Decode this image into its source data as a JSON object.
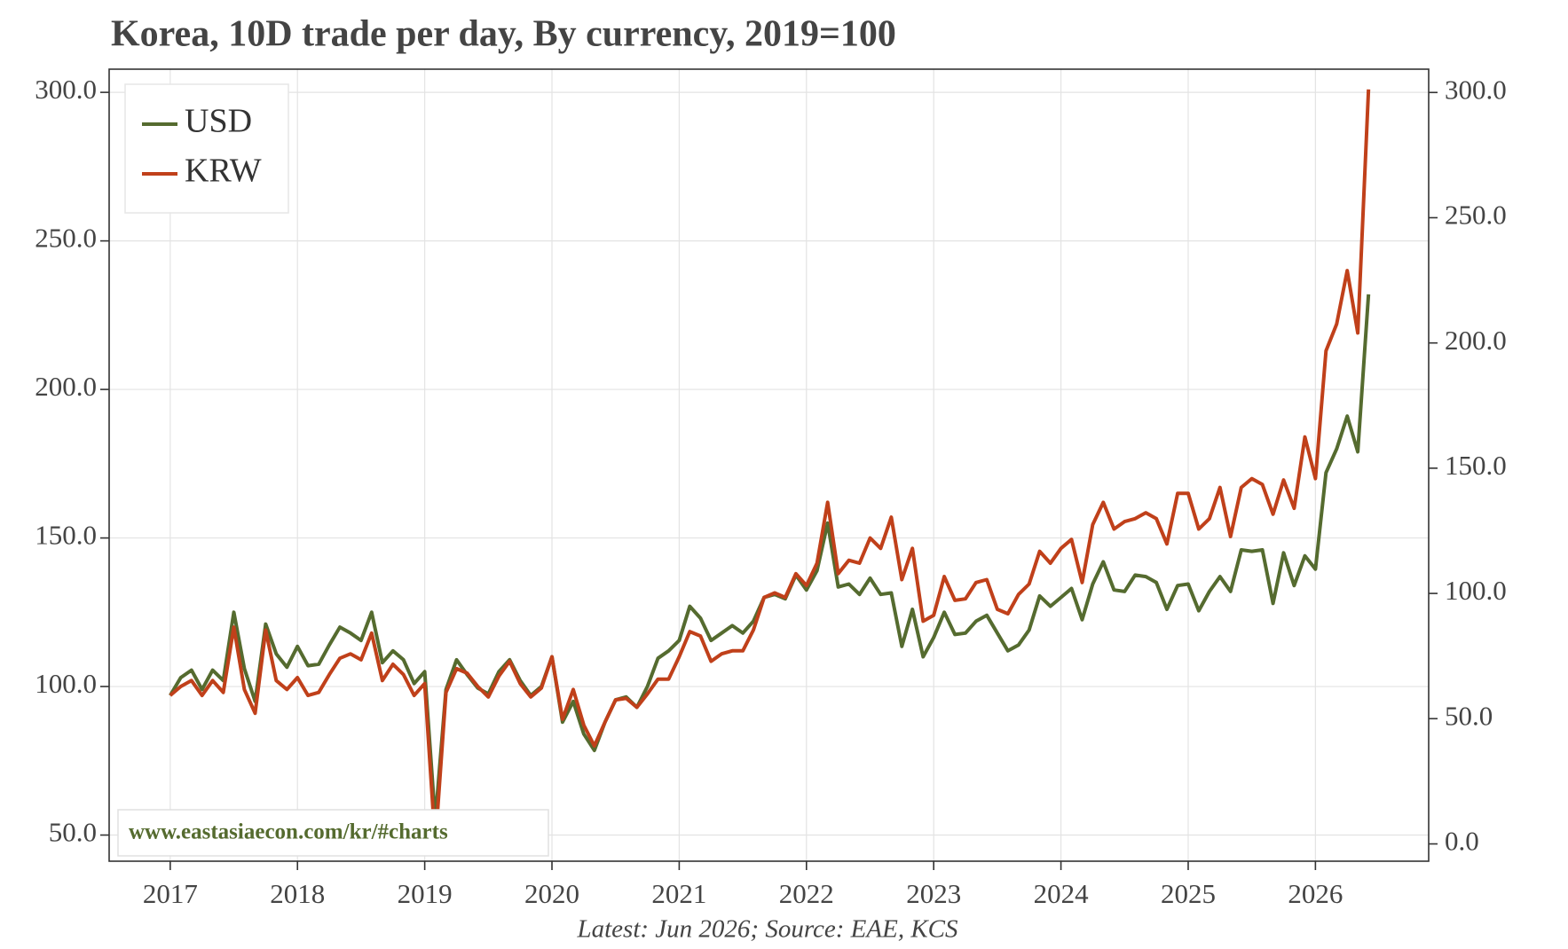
{
  "chart_data": {
    "type": "line",
    "title": "Korea, 10D trade per day, By currency, 2019=100",
    "source": "Latest: Jun 2026; Source: EAE, KCS",
    "watermark": "www.eastasiaecon.com/kr/#charts",
    "legend": "upper left",
    "grid": true,
    "x": [
      2017,
      2017.083,
      2017.167,
      2017.25,
      2017.333,
      2017.417,
      2017.5,
      2017.583,
      2017.667,
      2017.75,
      2017.833,
      2017.917,
      2018,
      2018.083,
      2018.167,
      2018.25,
      2018.333,
      2018.417,
      2018.5,
      2018.583,
      2018.667,
      2018.75,
      2018.833,
      2018.917,
      2019,
      2019.083,
      2019.167,
      2019.25,
      2019.333,
      2019.417,
      2019.5,
      2019.583,
      2019.667,
      2019.75,
      2019.833,
      2019.917,
      2020,
      2020.083,
      2020.167,
      2020.25,
      2020.333,
      2020.417,
      2020.5,
      2020.583,
      2020.667,
      2020.75,
      2020.833,
      2020.917,
      2021,
      2021.083,
      2021.167,
      2021.25,
      2021.333,
      2021.417,
      2021.5,
      2021.583,
      2021.667,
      2021.75,
      2021.833,
      2021.917,
      2022,
      2022.083,
      2022.167,
      2022.25,
      2022.333,
      2022.417,
      2022.5,
      2022.583,
      2022.667,
      2022.75,
      2022.833,
      2022.917,
      2023,
      2023.083,
      2023.167,
      2023.25,
      2023.333,
      2023.417,
      2023.5,
      2023.583,
      2023.667,
      2023.75,
      2023.833,
      2023.917,
      2024,
      2024.083,
      2024.167,
      2024.25,
      2024.333,
      2024.417,
      2024.5,
      2024.583,
      2024.667,
      2024.75,
      2024.833,
      2024.917,
      2025,
      2025.083,
      2025.167,
      2025.25,
      2025.333,
      2025.417,
      2025.5,
      2025.583,
      2025.667,
      2025.75,
      2025.833,
      2025.917,
      2026,
      2026.083,
      2026.167,
      2026.25,
      2026.333,
      2026.417
    ],
    "series": [
      {
        "name": "USD",
        "color": "#556b2f",
        "values": [
          97,
          103,
          105.5,
          99,
          105.5,
          102,
          125,
          106,
          95,
          121,
          111,
          106.5,
          113.5,
          107,
          107.5,
          114,
          120,
          118,
          115.5,
          125,
          108,
          112,
          109,
          101,
          105,
          55,
          99,
          109,
          104,
          99.5,
          97.5,
          105,
          109,
          102,
          97,
          100,
          110,
          88,
          95,
          84,
          78.5,
          88,
          95.5,
          96.5,
          93,
          100,
          109.5,
          112,
          115.5,
          127,
          123,
          115.5,
          118,
          120.5,
          118,
          122,
          130,
          131,
          129.5,
          137.5,
          132.5,
          139,
          155,
          133.5,
          134.5,
          131,
          136.5,
          131,
          131.5,
          113.5,
          126,
          110,
          116.5,
          125,
          117.5,
          118,
          122,
          124,
          118,
          112,
          114,
          119,
          130.5,
          127,
          130,
          133,
          122.5,
          134.5,
          142,
          132.5,
          132,
          137.5,
          137,
          135,
          126,
          134,
          134.5,
          125.5,
          132,
          137,
          132,
          146,
          145.5,
          146,
          128,
          145,
          134,
          144,
          139.5,
          172,
          180,
          191,
          179,
          232
        ]
      },
      {
        "name": "KRW",
        "color": "#c0401a",
        "values": [
          97,
          100,
          102,
          97,
          102,
          98,
          120,
          99,
          91,
          119,
          102,
          99,
          103,
          97,
          98,
          104,
          109.5,
          111,
          109,
          118,
          102,
          107.5,
          104,
          97,
          101,
          47,
          98,
          106,
          104.5,
          100,
          96.5,
          103.5,
          108.5,
          101,
          96.5,
          99.5,
          110,
          89,
          99,
          87,
          80,
          88,
          95.5,
          96,
          93,
          97.5,
          102.5,
          102.5,
          110,
          118.5,
          117,
          108.5,
          111,
          112,
          112,
          119,
          130,
          131.5,
          130,
          138,
          134,
          141.5,
          162,
          138,
          142.5,
          141.5,
          150,
          146.5,
          157,
          136,
          146.5,
          122,
          124,
          137,
          129,
          129.5,
          135,
          136,
          126,
          124.5,
          131,
          134.5,
          145.5,
          141.5,
          146.5,
          149.5,
          135,
          154.5,
          162,
          153,
          155.5,
          156.5,
          158.5,
          156.5,
          148,
          165,
          165,
          153,
          156.5,
          167,
          150.5,
          167,
          170,
          168,
          158,
          169.5,
          160,
          184,
          170,
          213,
          222,
          240,
          219,
          301
        ]
      }
    ],
    "xlim": [
      2016.52,
      2026.89
    ],
    "xticks": [
      2017,
      2018,
      2019,
      2020,
      2021,
      2022,
      2023,
      2024,
      2025,
      2026
    ],
    "ylim": [
      41.2,
      307.8
    ],
    "yticks": [
      {
        "value": 50,
        "label": "50.0"
      },
      {
        "value": 100,
        "label": "100.0"
      },
      {
        "value": 150,
        "label": "150.0"
      },
      {
        "value": 200,
        "label": "200.0"
      },
      {
        "value": 250,
        "label": "250.0"
      },
      {
        "value": 300,
        "label": "300.0"
      }
    ],
    "y2lim": [
      -6.9,
      309.3
    ],
    "y2ticks": [
      {
        "value": 0,
        "label": "0.0"
      },
      {
        "value": 50,
        "label": "50.0"
      },
      {
        "value": 100,
        "label": "100.0"
      },
      {
        "value": 150,
        "label": "150.0"
      },
      {
        "value": 200,
        "label": "200.0"
      },
      {
        "value": 250,
        "label": "250.0"
      },
      {
        "value": 300,
        "label": "300.0"
      }
    ]
  }
}
